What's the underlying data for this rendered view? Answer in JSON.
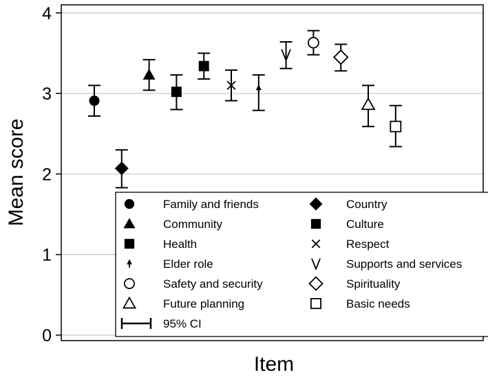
{
  "chart_data": {
    "type": "scatter",
    "xlabel": "Item",
    "ylabel": "Mean score",
    "ylim": [
      0,
      4
    ],
    "yticks": [
      0,
      1,
      2,
      3,
      4
    ],
    "grid": true,
    "legend_placement": "bottom",
    "error_bars": "95% CI",
    "ci_label": "95% CI",
    "series": [
      {
        "name": "Family and friends",
        "marker": "filled-circle",
        "x": 1,
        "mean": 2.91,
        "ci": [
          2.72,
          3.1
        ]
      },
      {
        "name": "Country",
        "marker": "filled-diamond",
        "x": 2,
        "mean": 2.07,
        "ci": [
          1.83,
          2.3
        ]
      },
      {
        "name": "Community",
        "marker": "filled-triangle",
        "x": 3,
        "mean": 3.23,
        "ci": [
          3.04,
          3.42
        ]
      },
      {
        "name": "Culture",
        "marker": "filled-square",
        "x": 4,
        "mean": 3.02,
        "ci": [
          2.8,
          3.23
        ]
      },
      {
        "name": "Health",
        "marker": "filled-square",
        "x": 5,
        "mean": 3.34,
        "ci": [
          3.18,
          3.5
        ]
      },
      {
        "name": "Respect",
        "marker": "x",
        "x": 6,
        "mean": 3.1,
        "ci": [
          2.91,
          3.29
        ]
      },
      {
        "name": "Elder role",
        "marker": "small-arrow",
        "x": 7,
        "mean": 3.05,
        "ci": [
          2.79,
          3.23
        ]
      },
      {
        "name": "Supports and services",
        "marker": "v",
        "x": 8,
        "mean": 3.48,
        "ci": [
          3.31,
          3.64
        ]
      },
      {
        "name": "Safety and security",
        "marker": "hollow-circle",
        "x": 9,
        "mean": 3.63,
        "ci": [
          3.48,
          3.78
        ]
      },
      {
        "name": "Spirituality",
        "marker": "hollow-diamond",
        "x": 10,
        "mean": 3.45,
        "ci": [
          3.28,
          3.61
        ]
      },
      {
        "name": "Future planning",
        "marker": "hollow-triangle",
        "x": 11,
        "mean": 2.86,
        "ci": [
          2.59,
          3.1
        ]
      },
      {
        "name": "Basic needs",
        "marker": "hollow-square",
        "x": 12,
        "mean": 2.59,
        "ci": [
          2.34,
          2.85
        ]
      }
    ],
    "legend_order": [
      [
        "Family and friends",
        "Country"
      ],
      [
        "Community",
        "Culture"
      ],
      [
        "Health",
        "Respect"
      ],
      [
        "Elder role",
        "Supports and services"
      ],
      [
        "Safety and security",
        "Spirituality"
      ],
      [
        "Future planning",
        "Basic needs"
      ]
    ]
  }
}
